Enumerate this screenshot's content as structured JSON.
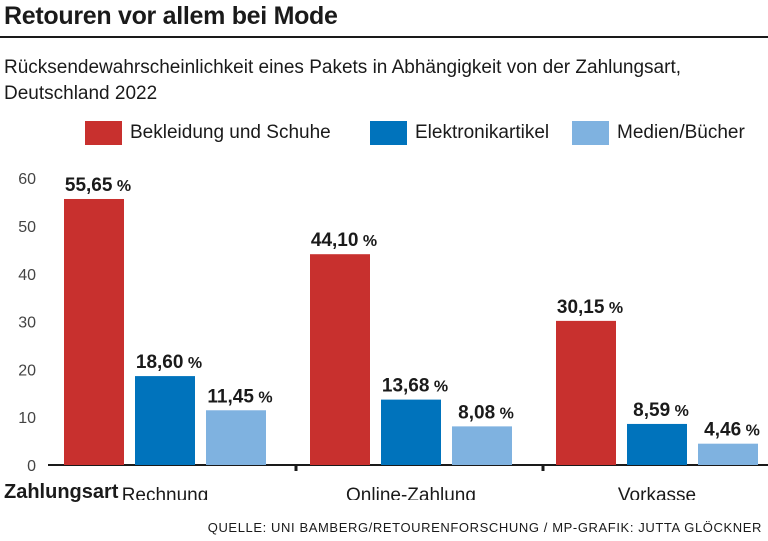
{
  "headline": "Retouren vor allem bei Mode",
  "chart_data": {
    "type": "bar",
    "title": "Rücksendewahrscheinlichkeit eines Pakets in Abhängigkeit von der Zahlungsart,",
    "subtitle": "Deutschland 2022",
    "xlabel": "Zahlungsart",
    "ylabel": "",
    "categories": [
      "Rechnung",
      "Online-Zahlung",
      "Vorkasse"
    ],
    "series": [
      {
        "name": "Bekleidung und Schuhe",
        "color": "#c8302e",
        "values": [
          55.65,
          44.1,
          30.15
        ],
        "labels": [
          "55,65",
          "44,10",
          "30,15"
        ]
      },
      {
        "name": "Elektronikartikel",
        "color": "#0073bc",
        "values": [
          18.6,
          13.68,
          8.59
        ],
        "labels": [
          "18,60",
          "13,68",
          "8,59"
        ]
      },
      {
        "name": "Medien/Bücher",
        "color": "#7fb2e0",
        "values": [
          11.45,
          8.08,
          4.46
        ],
        "labels": [
          "11,45",
          "8,08",
          "4,46"
        ]
      }
    ],
    "unit_suffix": "%",
    "ylim": [
      0,
      60
    ],
    "yticks": [
      0,
      10,
      20,
      30,
      40,
      50,
      60
    ],
    "grid": false,
    "legend_position": "top"
  },
  "source": "QUELLE: UNI BAMBERG/RETOURENFORSCHUNG / MP-GRAFIK: JUTTA GLÖCKNER"
}
